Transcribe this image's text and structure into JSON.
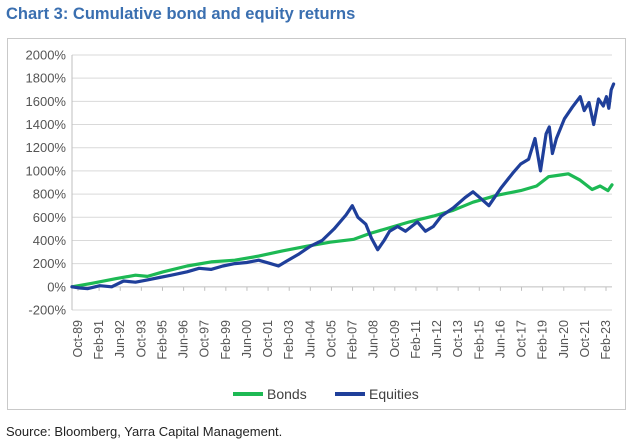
{
  "title": "Chart 3: Cumulative bond and equity returns",
  "source": "Source: Bloomberg, Yarra Capital Management.",
  "colors": {
    "bonds": "#1db954",
    "equities": "#1f3f9a",
    "grid": "#d9d9d9",
    "axis": "#bfbfbf"
  },
  "chart_data": {
    "type": "line",
    "title": "Chart 3: Cumulative bond and equity returns",
    "xlabel": "",
    "ylabel": "",
    "ylim": [
      -200,
      2000
    ],
    "y_ticks": [
      "-200%",
      "0%",
      "200%",
      "400%",
      "600%",
      "800%",
      "1000%",
      "1200%",
      "1400%",
      "1600%",
      "1800%",
      "2000%"
    ],
    "x_ticks": [
      "Oct-89",
      "Feb-91",
      "Jun-92",
      "Oct-93",
      "Feb-95",
      "Jun-96",
      "Oct-97",
      "Feb-99",
      "Jun-00",
      "Oct-01",
      "Feb-03",
      "Jun-04",
      "Oct-05",
      "Feb-07",
      "Jun-08",
      "Oct-09",
      "Feb-11",
      "Jun-12",
      "Oct-13",
      "Feb-15",
      "Jun-16",
      "Oct-17",
      "Feb-19",
      "Jun-20",
      "Oct-21",
      "Feb-23"
    ],
    "grid": true,
    "legend_position": "bottom",
    "series": [
      {
        "name": "Bonds",
        "color": "#1db954",
        "x": [
          1989.75,
          1991.0,
          1992.5,
          1993.75,
          1994.5,
          1995.5,
          1997.0,
          1998.5,
          2000.0,
          2001.5,
          2003.0,
          2004.5,
          2006.0,
          2007.5,
          2008.5,
          2009.5,
          2011.0,
          2012.5,
          2013.75,
          2015.0,
          2016.5,
          2018.0,
          2019.0,
          2019.75,
          2020.5,
          2021.0,
          2021.75,
          2022.5,
          2023.0,
          2023.5,
          2023.75
        ],
        "y": [
          0,
          30,
          70,
          100,
          90,
          130,
          180,
          215,
          230,
          265,
          310,
          350,
          385,
          410,
          460,
          500,
          560,
          610,
          660,
          730,
          790,
          830,
          870,
          950,
          965,
          975,
          920,
          840,
          870,
          830,
          880
        ]
      },
      {
        "name": "Equities",
        "color": "#1f3f9a",
        "x": [
          1989.75,
          1990.25,
          1990.75,
          1991.5,
          1992.25,
          1993.0,
          1993.75,
          1994.5,
          1995.25,
          1996.0,
          1997.0,
          1997.75,
          1998.5,
          1999.25,
          2000.0,
          2000.75,
          2001.5,
          2002.25,
          2002.75,
          2003.25,
          2004.0,
          2004.75,
          2005.5,
          2006.25,
          2007.0,
          2007.4,
          2007.75,
          2008.25,
          2008.6,
          2009.0,
          2009.4,
          2009.75,
          2010.25,
          2010.75,
          2011.5,
          2012.0,
          2012.5,
          2013.0,
          2013.75,
          2014.5,
          2015.0,
          2015.5,
          2016.0,
          2016.75,
          2017.5,
          2018.0,
          2018.5,
          2018.9,
          2019.25,
          2019.6,
          2019.8,
          2020.0,
          2020.25,
          2020.75,
          2021.25,
          2021.75,
          2022.0,
          2022.3,
          2022.6,
          2022.9,
          2023.2,
          2023.4,
          2023.55,
          2023.7,
          2023.85
        ],
        "y": [
          0,
          -10,
          -15,
          10,
          0,
          50,
          40,
          60,
          80,
          100,
          130,
          160,
          150,
          180,
          200,
          210,
          230,
          200,
          180,
          220,
          280,
          350,
          400,
          500,
          620,
          700,
          600,
          540,
          420,
          320,
          400,
          480,
          520,
          480,
          560,
          480,
          520,
          610,
          680,
          770,
          820,
          760,
          700,
          850,
          980,
          1060,
          1100,
          1280,
          1000,
          1320,
          1380,
          1150,
          1280,
          1450,
          1550,
          1640,
          1520,
          1590,
          1400,
          1620,
          1560,
          1640,
          1540,
          1700,
          1750
        ]
      }
    ]
  }
}
